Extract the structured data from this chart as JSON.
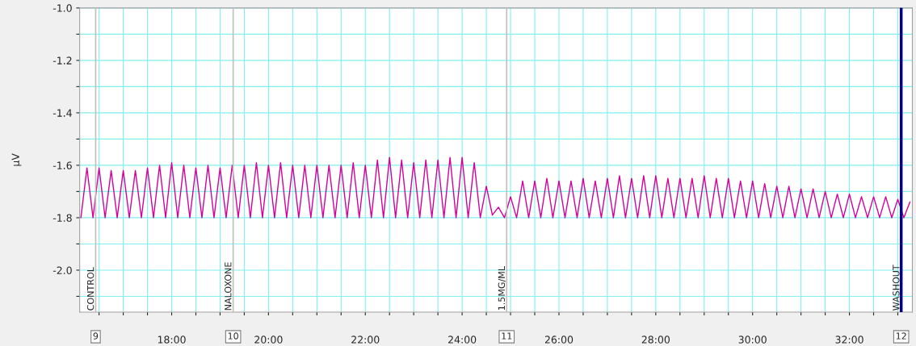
{
  "chart_data": {
    "type": "line",
    "ylabel": "µV",
    "xlim": [
      16.1,
      33.3
    ],
    "ylim": [
      -2.16,
      -1.0
    ],
    "xticks": [
      {
        "value": 16.5,
        "label": null
      },
      {
        "value": 17,
        "label": null
      },
      {
        "value": 17.5,
        "label": null
      },
      {
        "value": 18,
        "label": "18:00"
      },
      {
        "value": 18.5,
        "label": null
      },
      {
        "value": 19,
        "label": null
      },
      {
        "value": 19.5,
        "label": null
      },
      {
        "value": 20,
        "label": "20:00"
      },
      {
        "value": 20.5,
        "label": null
      },
      {
        "value": 21,
        "label": null
      },
      {
        "value": 21.5,
        "label": null
      },
      {
        "value": 22,
        "label": "22:00"
      },
      {
        "value": 22.5,
        "label": null
      },
      {
        "value": 23,
        "label": null
      },
      {
        "value": 23.5,
        "label": null
      },
      {
        "value": 24,
        "label": "24:00"
      },
      {
        "value": 24.5,
        "label": null
      },
      {
        "value": 25,
        "label": null
      },
      {
        "value": 25.5,
        "label": null
      },
      {
        "value": 26,
        "label": "26:00"
      },
      {
        "value": 26.5,
        "label": null
      },
      {
        "value": 27,
        "label": null
      },
      {
        "value": 27.5,
        "label": null
      },
      {
        "value": 28,
        "label": "28:00"
      },
      {
        "value": 28.5,
        "label": null
      },
      {
        "value": 29,
        "label": null
      },
      {
        "value": 29.5,
        "label": null
      },
      {
        "value": 30,
        "label": "30:00"
      },
      {
        "value": 30.5,
        "label": null
      },
      {
        "value": 31,
        "label": null
      },
      {
        "value": 31.5,
        "label": null
      },
      {
        "value": 32,
        "label": "32:00"
      },
      {
        "value": 32.5,
        "label": null
      },
      {
        "value": 33,
        "label": null
      }
    ],
    "yticks": [
      {
        "value": -1.0,
        "label": "-1.0"
      },
      {
        "value": -1.1,
        "label": null
      },
      {
        "value": -1.2,
        "label": "-1.2"
      },
      {
        "value": -1.3,
        "label": null
      },
      {
        "value": -1.4,
        "label": "-1.4"
      },
      {
        "value": -1.5,
        "label": null
      },
      {
        "value": -1.6,
        "label": "-1.6"
      },
      {
        "value": -1.7,
        "label": null
      },
      {
        "value": -1.8,
        "label": "-1.8"
      },
      {
        "value": -1.9,
        "label": null
      },
      {
        "value": -2.0,
        "label": "-2.0"
      },
      {
        "value": -2.1,
        "label": null
      }
    ],
    "grid": true,
    "marker": "none",
    "line_style": "solid",
    "series": [
      {
        "color": "#d4009a",
        "x": [
          16.125,
          16.25,
          16.375,
          16.5,
          16.625,
          16.75,
          16.875,
          17.0,
          17.125,
          17.25,
          17.375,
          17.5,
          17.625,
          17.75,
          17.875,
          18.0,
          18.125,
          18.25,
          18.375,
          18.5,
          18.625,
          18.75,
          18.875,
          19.0,
          19.125,
          19.25,
          19.375,
          19.5,
          19.625,
          19.75,
          19.875,
          20.0,
          20.125,
          20.25,
          20.375,
          20.5,
          20.625,
          20.75,
          20.875,
          21.0,
          21.125,
          21.25,
          21.375,
          21.5,
          21.625,
          21.75,
          21.875,
          22.0,
          22.125,
          22.25,
          22.375,
          22.5,
          22.625,
          22.75,
          22.875,
          23.0,
          23.125,
          23.25,
          23.375,
          23.5,
          23.625,
          23.75,
          23.875,
          24.0,
          24.125,
          24.25,
          24.375,
          24.5,
          24.625,
          24.75,
          24.875,
          25.0,
          25.125,
          25.25,
          25.375,
          25.5,
          25.625,
          25.75,
          25.875,
          26.0,
          26.125,
          26.25,
          26.375,
          26.5,
          26.625,
          26.75,
          26.875,
          27.0,
          27.125,
          27.25,
          27.375,
          27.5,
          27.625,
          27.75,
          27.875,
          28.0,
          28.125,
          28.25,
          28.375,
          28.5,
          28.625,
          28.75,
          28.875,
          29.0,
          29.125,
          29.25,
          29.375,
          29.5,
          29.625,
          29.75,
          29.875,
          30.0,
          30.125,
          30.25,
          30.375,
          30.5,
          30.625,
          30.75,
          30.875,
          31.0,
          31.125,
          31.25,
          31.375,
          31.5,
          31.625,
          31.75,
          31.875,
          32.0,
          32.125,
          32.25,
          32.375,
          32.5,
          32.625,
          32.75,
          32.875,
          33.0,
          33.125,
          33.25
        ],
        "values": [
          -1.8,
          -1.61,
          -1.8,
          -1.61,
          -1.8,
          -1.62,
          -1.8,
          -1.62,
          -1.8,
          -1.62,
          -1.8,
          -1.61,
          -1.8,
          -1.6,
          -1.8,
          -1.59,
          -1.8,
          -1.6,
          -1.8,
          -1.61,
          -1.8,
          -1.6,
          -1.8,
          -1.61,
          -1.8,
          -1.6,
          -1.8,
          -1.6,
          -1.8,
          -1.59,
          -1.8,
          -1.6,
          -1.8,
          -1.59,
          -1.8,
          -1.6,
          -1.8,
          -1.6,
          -1.8,
          -1.6,
          -1.8,
          -1.6,
          -1.8,
          -1.6,
          -1.8,
          -1.59,
          -1.8,
          -1.6,
          -1.8,
          -1.58,
          -1.8,
          -1.57,
          -1.8,
          -1.58,
          -1.8,
          -1.59,
          -1.8,
          -1.58,
          -1.8,
          -1.58,
          -1.8,
          -1.57,
          -1.8,
          -1.57,
          -1.8,
          -1.59,
          -1.8,
          -1.68,
          -1.79,
          -1.76,
          -1.8,
          -1.72,
          -1.8,
          -1.66,
          -1.8,
          -1.66,
          -1.8,
          -1.65,
          -1.8,
          -1.66,
          -1.8,
          -1.66,
          -1.8,
          -1.65,
          -1.8,
          -1.66,
          -1.8,
          -1.65,
          -1.8,
          -1.64,
          -1.8,
          -1.65,
          -1.8,
          -1.64,
          -1.8,
          -1.64,
          -1.8,
          -1.65,
          -1.8,
          -1.65,
          -1.8,
          -1.65,
          -1.8,
          -1.64,
          -1.8,
          -1.65,
          -1.8,
          -1.65,
          -1.8,
          -1.66,
          -1.8,
          -1.66,
          -1.8,
          -1.67,
          -1.8,
          -1.68,
          -1.8,
          -1.68,
          -1.8,
          -1.69,
          -1.8,
          -1.69,
          -1.8,
          -1.7,
          -1.8,
          -1.71,
          -1.8,
          -1.71,
          -1.8,
          -1.72,
          -1.8,
          -1.72,
          -1.8,
          -1.72,
          -1.8,
          -1.73,
          -1.8,
          -1.74
        ]
      }
    ],
    "ref_lines": [
      {
        "axis": "x",
        "value": 16.43,
        "label": "CONTROL",
        "color": "#c0c0c0"
      },
      {
        "axis": "x",
        "value": 19.27,
        "label": "NALOXONE",
        "color": "#c0c0c0"
      },
      {
        "axis": "x",
        "value": 24.92,
        "label": "1.5MG/ML",
        "color": "#c0c0c0"
      },
      {
        "axis": "x",
        "value": 33.07,
        "label": "WASHOUT",
        "color": "#000080"
      }
    ],
    "annotations": [
      "9",
      "10",
      "11",
      "12"
    ]
  }
}
